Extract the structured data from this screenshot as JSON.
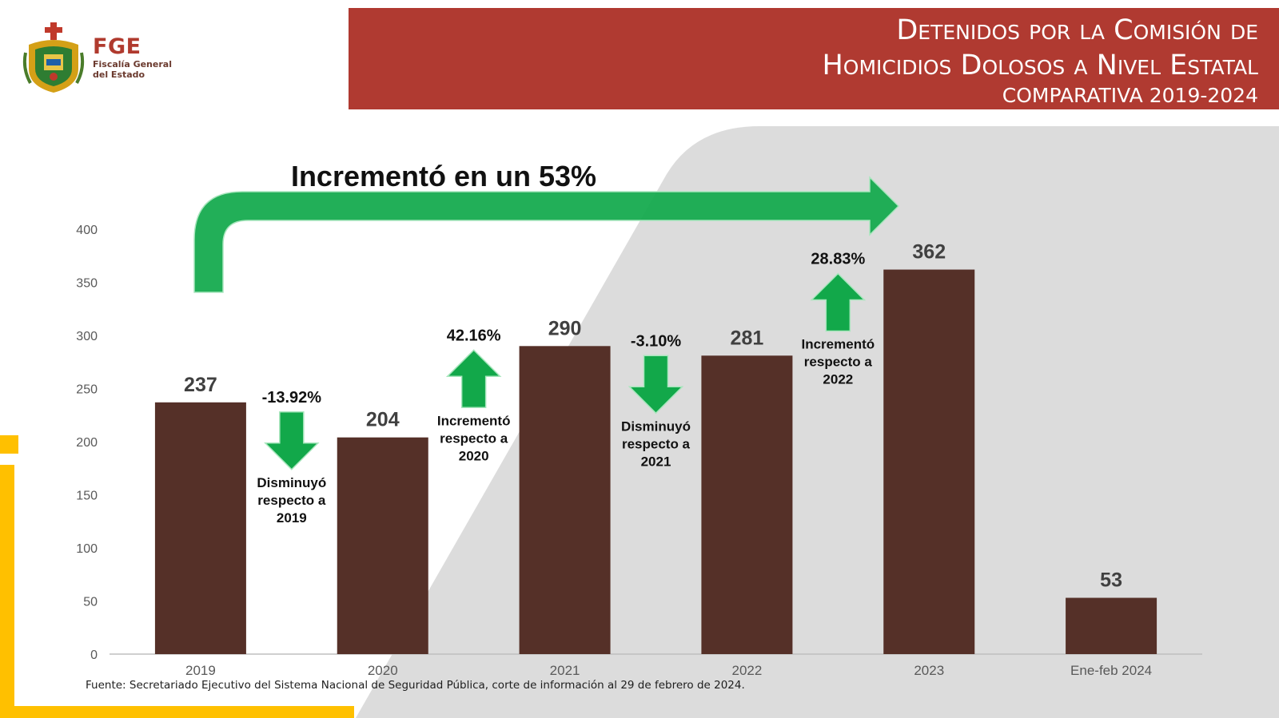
{
  "header": {
    "logo_abbr": "FGE",
    "logo_line1": "Fiscalía General",
    "logo_line2": "del Estado",
    "title_line1": "Detenidos por la Comisión de",
    "title_line2": "Homicidios Dolosos a Nivel Estatal",
    "subtitle": "COMPARATIVA 2019-2024"
  },
  "footnote": "Fuente: Secretariado Ejecutivo del Sistema Nacional de Seguridad Pública, corte de información al 29 de febrero de 2024.",
  "colors": {
    "bar": "#553028",
    "banner": "#b03a31",
    "arrow_green": "#12a84a",
    "accent_yellow": "#ffc000",
    "background_shape": "#dcdcdc"
  },
  "chart_data": {
    "type": "bar",
    "categories": [
      "2019",
      "2020",
      "2021",
      "2022",
      "2023",
      "Ene-feb 2024"
    ],
    "values": [
      237,
      204,
      290,
      281,
      362,
      53
    ],
    "ylim": [
      0,
      400
    ],
    "yticks": [
      0,
      50,
      100,
      150,
      200,
      250,
      300,
      350,
      400
    ],
    "grid": false,
    "legend": "none",
    "headline": "Incrementó en un 53%",
    "annotations": [
      {
        "between": [
          "2019",
          "2020"
        ],
        "direction": "down",
        "percent": "-13.92%",
        "lines": [
          "Disminuyó",
          "respecto a",
          "2019"
        ]
      },
      {
        "between": [
          "2020",
          "2021"
        ],
        "direction": "up",
        "percent": "42.16%",
        "lines": [
          "Incrementó",
          "respecto a",
          "2020"
        ]
      },
      {
        "between": [
          "2021",
          "2022"
        ],
        "direction": "down",
        "percent": "-3.10%",
        "lines": [
          "Disminuyó",
          "respecto a",
          "2021"
        ]
      },
      {
        "between": [
          "2022",
          "2023"
        ],
        "direction": "up",
        "percent": "28.83%",
        "lines": [
          "Incrementó",
          "respecto a",
          "2022"
        ]
      }
    ]
  }
}
